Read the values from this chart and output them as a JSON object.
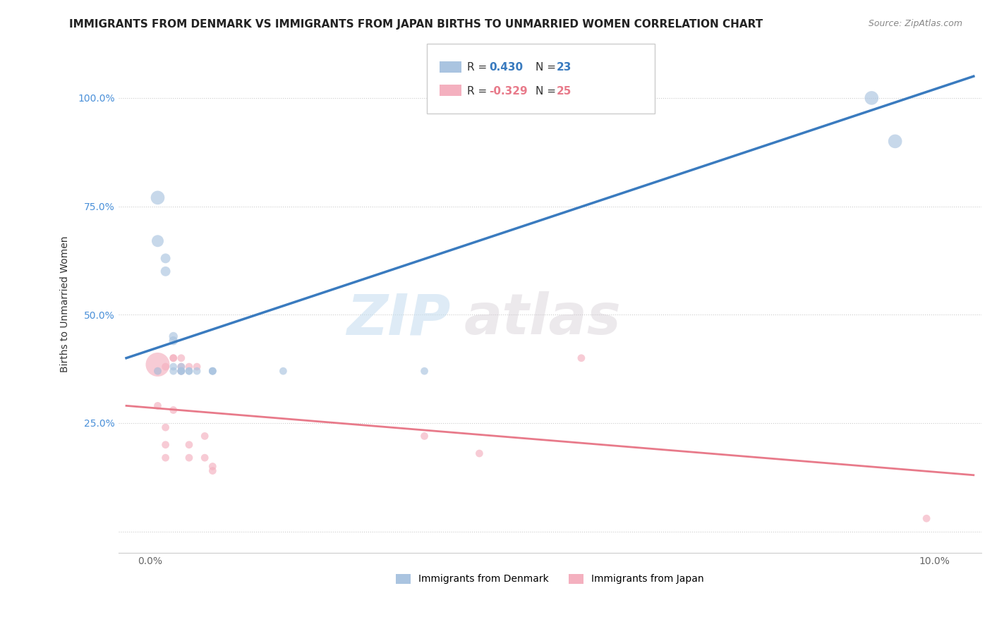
{
  "title": "IMMIGRANTS FROM DENMARK VS IMMIGRANTS FROM JAPAN BIRTHS TO UNMARRIED WOMEN CORRELATION CHART",
  "source": "Source: ZipAtlas.com",
  "ylabel": "Births to Unmarried Women",
  "background_color": "#ffffff",
  "watermark_zip": "ZIP",
  "watermark_atlas": "atlas",
  "legend_r1_label": "R = ",
  "legend_r1_val": " 0.430",
  "legend_n1_label": "N = ",
  "legend_n1_val": "23",
  "legend_r2_label": "R = ",
  "legend_r2_val": "-0.329",
  "legend_n2_label": "N = ",
  "legend_n2_val": "25",
  "denmark_color": "#aac4e0",
  "japan_color": "#f4b0bf",
  "denmark_line_color": "#3a7bbf",
  "japan_line_color": "#e87a8a",
  "denmark_scatter_x": [
    0.001,
    0.001,
    0.002,
    0.002,
    0.003,
    0.003,
    0.003,
    0.004,
    0.004,
    0.004,
    0.005,
    0.005,
    0.006,
    0.008,
    0.008,
    0.008,
    0.017,
    0.035,
    0.092,
    0.095,
    0.001,
    0.003,
    0.004
  ],
  "denmark_scatter_y": [
    0.77,
    0.67,
    0.63,
    0.6,
    0.44,
    0.45,
    0.38,
    0.37,
    0.38,
    0.37,
    0.37,
    0.37,
    0.37,
    0.37,
    0.37,
    0.37,
    0.37,
    0.37,
    1.0,
    0.9,
    0.37,
    0.37,
    0.37
  ],
  "denmark_scatter_sizes": [
    200,
    150,
    100,
    100,
    80,
    80,
    60,
    60,
    60,
    60,
    60,
    60,
    60,
    60,
    60,
    60,
    60,
    60,
    200,
    200,
    60,
    60,
    60
  ],
  "japan_scatter_x": [
    0.001,
    0.001,
    0.001,
    0.002,
    0.002,
    0.002,
    0.002,
    0.003,
    0.003,
    0.003,
    0.004,
    0.004,
    0.004,
    0.005,
    0.005,
    0.005,
    0.006,
    0.007,
    0.007,
    0.008,
    0.008,
    0.035,
    0.042,
    0.055,
    0.099
  ],
  "japan_scatter_y": [
    0.385,
    0.37,
    0.29,
    0.38,
    0.24,
    0.2,
    0.17,
    0.4,
    0.4,
    0.28,
    0.4,
    0.38,
    0.37,
    0.38,
    0.2,
    0.17,
    0.38,
    0.22,
    0.17,
    0.15,
    0.14,
    0.22,
    0.18,
    0.4,
    0.03
  ],
  "japan_scatter_sizes": [
    600,
    60,
    60,
    60,
    60,
    60,
    60,
    60,
    60,
    60,
    60,
    60,
    60,
    60,
    60,
    60,
    60,
    60,
    60,
    60,
    60,
    60,
    60,
    60,
    60
  ],
  "denmark_line_x0": -0.003,
  "denmark_line_y0": 0.4,
  "denmark_line_x1": 0.105,
  "denmark_line_y1": 1.05,
  "japan_line_x0": -0.003,
  "japan_line_y0": 0.29,
  "japan_line_x1": 0.105,
  "japan_line_y1": 0.13,
  "xlim": [
    -0.004,
    0.106
  ],
  "ylim": [
    -0.05,
    1.1
  ],
  "xticks": [
    0.0,
    0.02,
    0.04,
    0.06,
    0.08,
    0.1
  ],
  "xticklabels": [
    "0.0%",
    "",
    "",
    "",
    "",
    "10.0%"
  ],
  "yticks": [
    0.0,
    0.25,
    0.5,
    0.75,
    1.0
  ],
  "yticklabels": [
    "",
    "25.0%",
    "50.0%",
    "75.0%",
    "100.0%"
  ],
  "title_fontsize": 11,
  "label_fontsize": 10,
  "tick_fontsize": 10,
  "source_fontsize": 9
}
